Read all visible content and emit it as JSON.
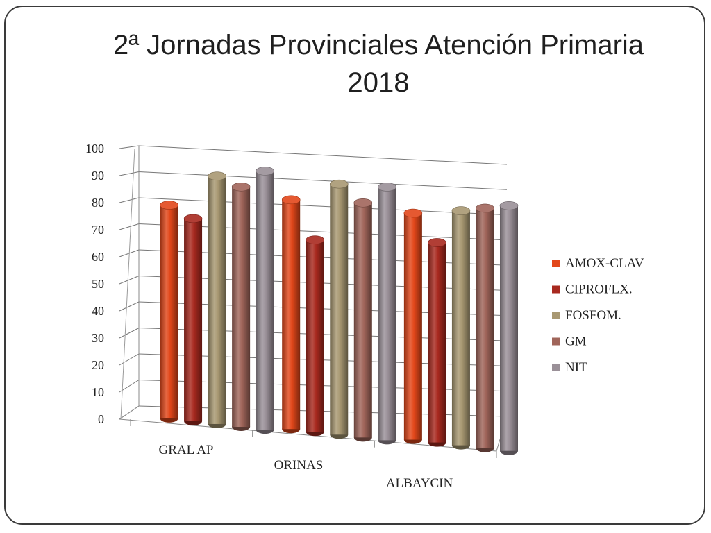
{
  "slide": {
    "title_line1": "2ª Jornadas Provinciales Atención Primaria",
    "title_line2": "2018"
  },
  "chart_data": {
    "type": "bar",
    "style": "3d-cylinder",
    "categories": [
      "GRAL AP",
      "ORINAS",
      "ALBAYCIN"
    ],
    "series": [
      {
        "name": "AMOX-CLAV",
        "color": "#e2471a",
        "values": [
          80,
          86,
          85
        ]
      },
      {
        "name": "CIPROFLX.",
        "color": "#a8291f",
        "values": [
          76,
          72,
          75
        ]
      },
      {
        "name": "FOSFOM.",
        "color": "#a89872",
        "values": [
          93,
          94,
          88
        ]
      },
      {
        "name": "GM",
        "color": "#a0655a",
        "values": [
          90,
          88,
          90
        ]
      },
      {
        "name": "NIT",
        "color": "#9a9098",
        "values": [
          97,
          95,
          92
        ]
      }
    ],
    "ylim": [
      0,
      100
    ],
    "yticks": [
      0,
      10,
      20,
      30,
      40,
      50,
      60,
      70,
      80,
      90,
      100
    ],
    "gridlines": true,
    "legend_position": "right"
  }
}
